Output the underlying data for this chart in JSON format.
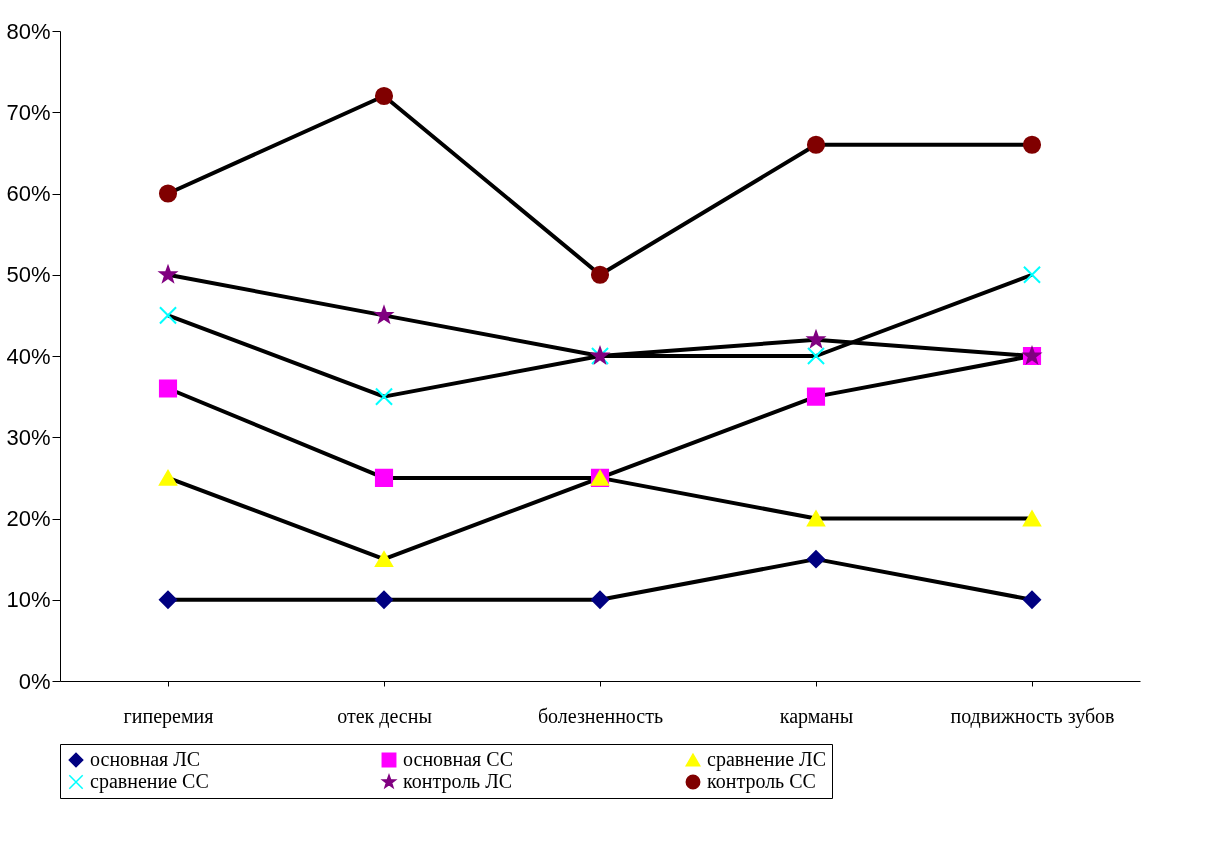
{
  "chart_data": {
    "type": "line",
    "categories": [
      "гиперемия",
      "отек десны",
      "болезненность",
      "карманы",
      "подвижность зубов"
    ],
    "ylim": [
      0,
      80
    ],
    "yticks": [
      {
        "value": 0,
        "label": "0%"
      },
      {
        "value": 10,
        "label": "10%"
      },
      {
        "value": 20,
        "label": "20%"
      },
      {
        "value": 30,
        "label": "30%"
      },
      {
        "value": 40,
        "label": "40%"
      },
      {
        "value": 50,
        "label": "50%"
      },
      {
        "value": 60,
        "label": "60%"
      },
      {
        "value": 70,
        "label": "70%"
      },
      {
        "value": 80,
        "label": "80%"
      }
    ],
    "grid": false,
    "legend": "bottom",
    "series": [
      {
        "name": "основная ЛС",
        "color": "#000080",
        "marker": "diamond",
        "values": [
          10,
          10,
          10,
          15,
          10
        ]
      },
      {
        "name": "основная СС",
        "color": "#ff00ff",
        "marker": "square",
        "values": [
          36,
          25,
          25,
          35,
          40
        ]
      },
      {
        "name": "сравнение ЛС",
        "color": "#ffff00",
        "marker": "triangle",
        "values": [
          25,
          15,
          25,
          20,
          20
        ]
      },
      {
        "name": "сравнение СС",
        "color": "#00ffff",
        "marker": "cross",
        "values": [
          45,
          35,
          40,
          40,
          50
        ]
      },
      {
        "name": "контроль ЛС",
        "color": "#800080",
        "marker": "star",
        "values": [
          50,
          45,
          40,
          42,
          40
        ]
      },
      {
        "name": "контроль СС",
        "color": "#800000",
        "marker": "circle",
        "values": [
          60,
          72,
          50,
          66,
          66
        ]
      }
    ]
  }
}
